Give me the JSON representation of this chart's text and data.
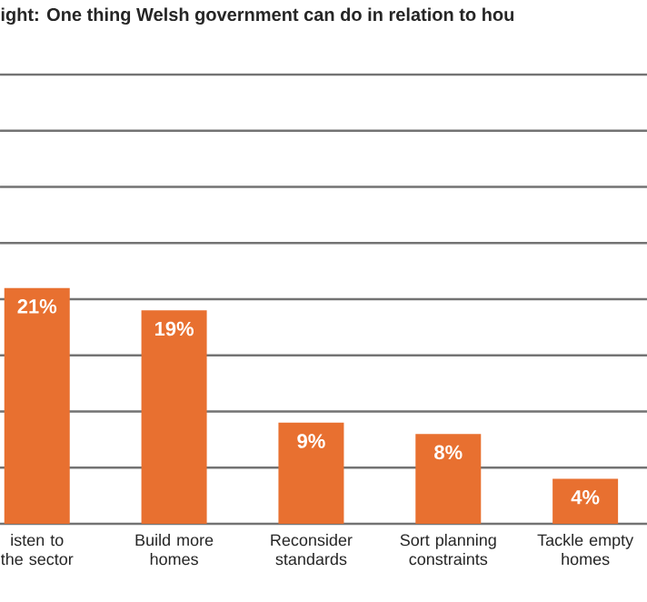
{
  "chart_data": {
    "type": "bar",
    "title": "ight: One thing Welsh government can do in relation to hou",
    "categories": [
      "isten to the sector",
      "Build more homes",
      "Reconsider standards",
      "Sort planning constraints",
      "Tackle empty homes"
    ],
    "values": [
      21,
      19,
      9,
      8,
      4
    ],
    "value_labels": [
      "21%",
      "19%",
      "9%",
      "8%",
      "4%"
    ],
    "color": "#e87030",
    "ylim": [
      0,
      40
    ],
    "yticks": [
      {
        "value": 0,
        "label": null
      },
      {
        "value": 5,
        "label": null
      },
      {
        "value": 10,
        "label": null
      },
      {
        "value": 15,
        "label": null
      },
      {
        "value": 20,
        "label": null
      },
      {
        "value": 25,
        "label": null
      },
      {
        "value": 30,
        "label": null
      },
      {
        "value": 35,
        "label": null
      },
      {
        "value": 40,
        "label": null
      }
    ],
    "grid": "y",
    "tick_labels": "x"
  }
}
